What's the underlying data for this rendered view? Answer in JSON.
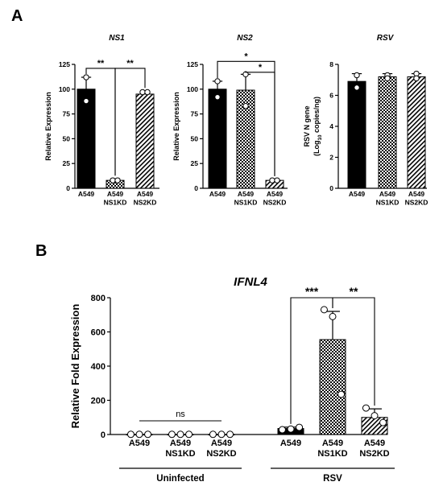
{
  "panel_labels": {
    "a": "A",
    "b": "B"
  },
  "colors": {
    "axis": "#000000",
    "fill_solid": "#000000",
    "fill_hatch": "#ffffff"
  },
  "chart_data": [
    {
      "id": "ns1",
      "type": "bar",
      "title": "NS1",
      "xlabel": "",
      "ylabel": "Relative Expression",
      "ylim": [
        0,
        125
      ],
      "yticks": [
        0,
        25,
        50,
        75,
        100,
        125
      ],
      "categories": [
        [
          "A549"
        ],
        [
          "A549",
          "NS1KD"
        ],
        [
          "A549",
          "NS2KD"
        ]
      ],
      "fills": [
        "solid",
        "checker",
        "diagonal"
      ],
      "values": [
        100,
        8,
        95
      ],
      "errors": [
        12,
        1.5,
        3
      ],
      "points": [
        [
          112,
          88
        ],
        [
          8,
          8
        ],
        [
          97,
          97
        ]
      ],
      "significance": [
        {
          "from": 0,
          "to": 1,
          "label": "**",
          "level": 121
        },
        {
          "from": 1,
          "to": 2,
          "label": "**",
          "level": 121
        }
      ]
    },
    {
      "id": "ns2",
      "type": "bar",
      "title": "NS2",
      "xlabel": "",
      "ylabel": "Relative Expression",
      "ylim": [
        0,
        125
      ],
      "yticks": [
        0,
        25,
        50,
        75,
        100,
        125
      ],
      "categories": [
        [
          "A549"
        ],
        [
          "A549",
          "NS1KD"
        ],
        [
          "A549",
          "NS2KD"
        ]
      ],
      "fills": [
        "solid",
        "checker",
        "diagonal"
      ],
      "values": [
        100,
        99,
        8
      ],
      "errors": [
        8,
        16,
        1
      ],
      "points": [
        [
          108,
          92
        ],
        [
          115,
          83
        ],
        [
          8,
          8
        ]
      ],
      "significance": [
        {
          "from": 0,
          "to": 2,
          "label": "*",
          "level": 128
        },
        {
          "from": 1,
          "to": 2,
          "label": "*",
          "level": 117
        }
      ]
    },
    {
      "id": "rsv",
      "type": "bar",
      "title": "RSV",
      "xlabel": "",
      "ylabel": "RSV N gene",
      "ylabel2_prefix": "(Log",
      "ylabel2_sub": "10",
      "ylabel2_suffix": " copies/ng)",
      "ylim": [
        0,
        8
      ],
      "yticks": [
        0,
        2,
        4,
        6,
        8
      ],
      "categories": [
        [
          "A549"
        ],
        [
          "A549",
          "NS1KD"
        ],
        [
          "A549",
          "NS2KD"
        ]
      ],
      "fills": [
        "solid",
        "checker",
        "diagonal"
      ],
      "values": [
        6.9,
        7.2,
        7.2
      ],
      "errors": [
        0.5,
        0.2,
        0.2
      ],
      "points": [
        [
          7.3,
          6.5
        ],
        [
          7.3,
          7.1
        ],
        [
          7.4,
          7.1
        ]
      ],
      "significance": []
    },
    {
      "id": "ifnl4",
      "type": "bar",
      "title": "IFNL4",
      "xlabel": "",
      "ylabel": "Relative Fold Expression",
      "ylim": [
        0,
        800
      ],
      "yticks": [
        0,
        200,
        400,
        600,
        800
      ],
      "groups": [
        "Uninfected",
        "RSV"
      ],
      "categories": [
        [
          "A549"
        ],
        [
          "A549",
          "NS1KD"
        ],
        [
          "A549",
          "NS2KD"
        ],
        [
          "A549"
        ],
        [
          "A549",
          "NS1KD"
        ],
        [
          "A549",
          "NS2KD"
        ]
      ],
      "group_of": [
        0,
        0,
        0,
        1,
        1,
        1
      ],
      "fills": [
        "solid",
        "checker",
        "diagonal",
        "solid",
        "checker",
        "diagonal"
      ],
      "values": [
        1,
        1,
        1,
        35,
        555,
        100
      ],
      "errors": [
        0,
        0,
        0,
        8,
        165,
        50
      ],
      "points": [
        [
          1,
          1,
          1
        ],
        [
          1,
          1,
          1
        ],
        [
          1,
          1,
          1
        ],
        [
          28,
          32,
          42
        ],
        [
          730,
          690,
          235
        ],
        [
          155,
          110,
          70
        ]
      ],
      "significance": [
        {
          "from": 3,
          "to": 4,
          "label": "***",
          "level": 800
        },
        {
          "from": 4,
          "to": 5,
          "label": "**",
          "level": 800
        }
      ],
      "ns": {
        "from": 0,
        "to": 2,
        "label": "ns",
        "level": 80
      }
    }
  ]
}
